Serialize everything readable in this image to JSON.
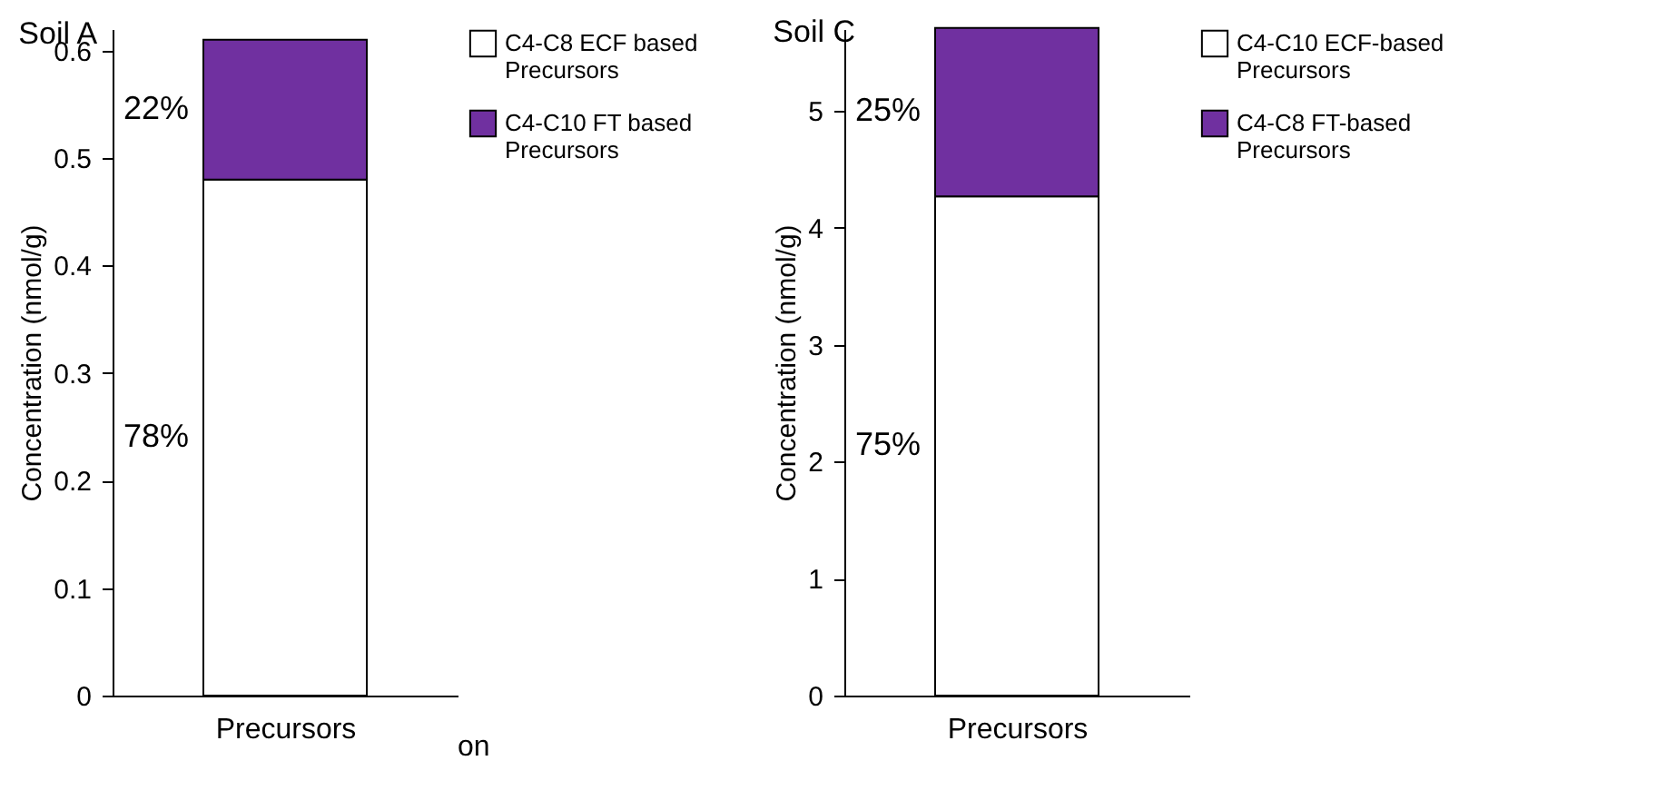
{
  "chart_data": [
    {
      "type": "bar",
      "title": "Soil A",
      "stacked": true,
      "categories": [
        null
      ],
      "xlabel": "Precursors",
      "ylabel": "Concentration (nmol/g)",
      "ylim": [
        0,
        0.62
      ],
      "yticks": [
        0,
        0.1,
        0.2,
        0.3,
        0.4,
        0.5,
        0.6
      ],
      "grid": false,
      "legend": "right",
      "annotations": [
        "78%",
        "22%",
        "on"
      ],
      "series": [
        {
          "name": "C4-C8 ECF based Precursors",
          "color": "#ffffff",
          "values": [
            0.48
          ]
        },
        {
          "name": "C4-C10 FT based Precursors",
          "color": "#7030a0",
          "values": [
            0.13
          ]
        }
      ]
    },
    {
      "type": "bar",
      "title": "Soil C",
      "stacked": true,
      "categories": [
        null
      ],
      "xlabel": "Precursors",
      "ylabel": "Concentration (nmol/g)",
      "ylim": [
        0,
        5.7
      ],
      "yticks": [
        0,
        1,
        2,
        3,
        4,
        5
      ],
      "grid": false,
      "legend": "right",
      "annotations": [
        "75%",
        "25%"
      ],
      "series": [
        {
          "name": "C4-C10 ECF-based Precursors",
          "color": "#ffffff",
          "values": [
            4.27
          ]
        },
        {
          "name": "C4-C8 FT-based Precursors",
          "color": "#7030a0",
          "values": [
            1.44
          ]
        }
      ]
    }
  ]
}
